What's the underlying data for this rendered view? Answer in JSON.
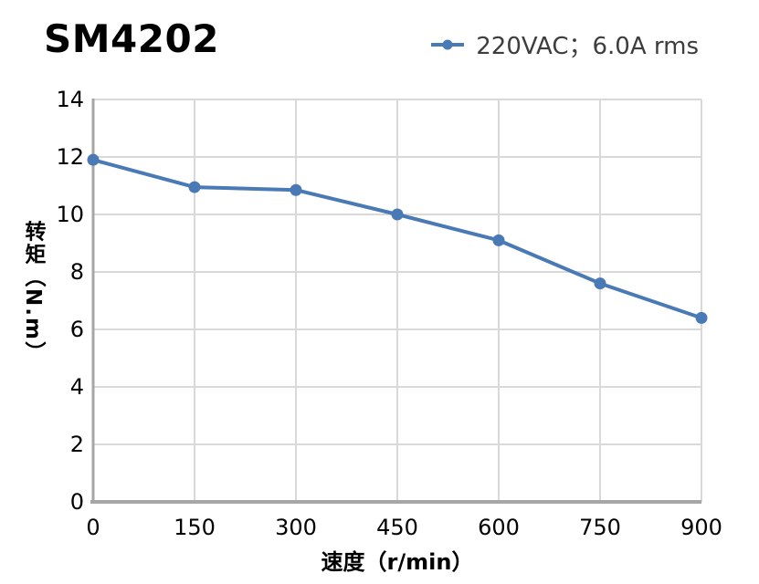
{
  "title": "SM4202",
  "legend": {
    "label": "220VAC；6.0A rms",
    "marker_icon": "line-with-dot-icon"
  },
  "chart_data": {
    "type": "line",
    "title": "SM4202",
    "xlabel": "速度（r/min）",
    "ylabel": "转矩（N.m）",
    "x": [
      0,
      150,
      300,
      450,
      600,
      750,
      900
    ],
    "series": [
      {
        "name": "220VAC；6.0A rms",
        "values": [
          11.9,
          10.95,
          10.85,
          10.0,
          9.1,
          7.6,
          6.4
        ],
        "color": "#4a7ab5"
      }
    ],
    "xlim": [
      0,
      900
    ],
    "ylim": [
      0,
      14
    ],
    "xticks": [
      0,
      150,
      300,
      450,
      600,
      750,
      900
    ],
    "yticks": [
      0,
      2,
      4,
      6,
      8,
      10,
      12,
      14
    ],
    "grid": true,
    "legend_position": "top-right",
    "colors": {
      "series": "#4a7ab5",
      "grid": "#d9d9d9",
      "axis": "#a6a6a6",
      "text": "#000000",
      "legend_text": "#3d3d3d"
    }
  }
}
